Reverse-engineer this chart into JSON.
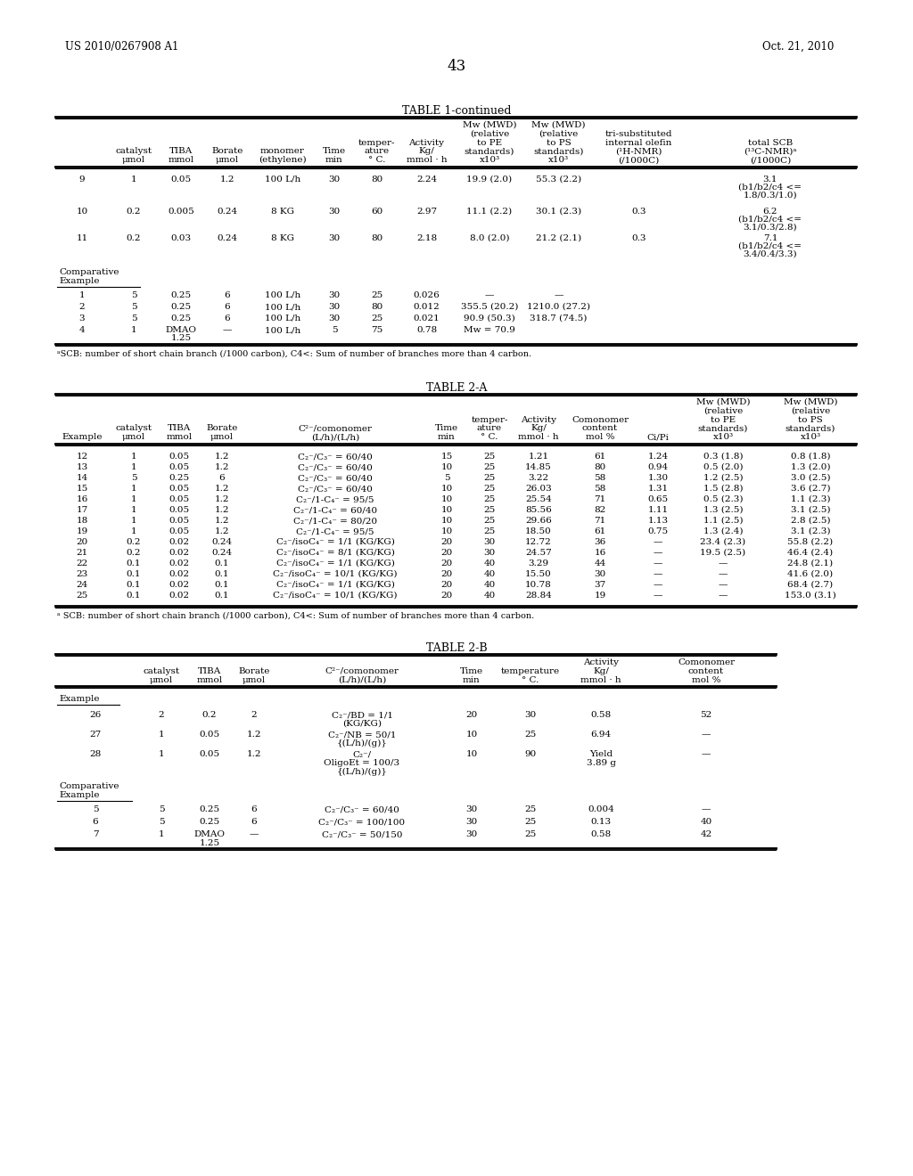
{
  "page_num": "43",
  "patent_left": "US 2010/0267908 A1",
  "patent_right": "Oct. 21, 2010",
  "bg_color": "#ffffff",
  "table1_title": "TABLE 1-continued",
  "table1_footnote": "ᵃSCB: number of short chain branch (/1000 carbon), C4<: Sum of number of branches more than 4 carbon.",
  "table2a_title": "TABLE 2-A",
  "table2a_footnote": "ᵃ SCB: number of short chain branch (/1000 carbon), C4<: Sum of number of branches more than 4 carbon.",
  "table2b_title": "TABLE 2-B",
  "t1_cols": [
    62,
    122,
    178,
    228,
    282,
    352,
    398,
    447,
    510,
    588,
    665,
    768,
    960
  ],
  "t2a_cols": [
    62,
    122,
    178,
    224,
    274,
    478,
    524,
    574,
    634,
    712,
    764,
    858,
    960
  ],
  "t2b_cols": [
    62,
    152,
    210,
    260,
    310,
    502,
    556,
    634,
    714,
    870
  ]
}
